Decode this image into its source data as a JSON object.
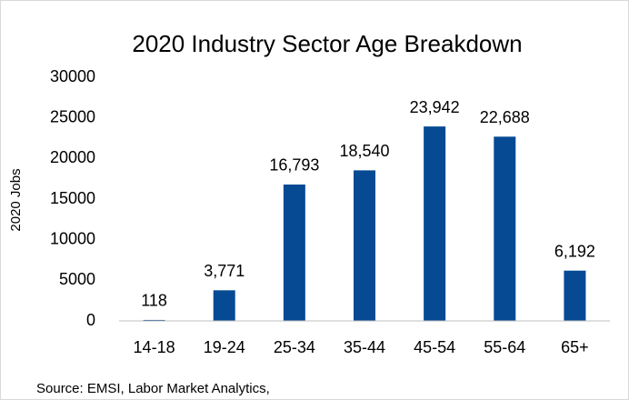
{
  "chart_data": {
    "type": "bar",
    "title": "2020 Industry Sector Age Breakdown",
    "y_label": "2020 Jobs",
    "categories": [
      "14-18",
      "19-24",
      "25-34",
      "35-44",
      "45-54",
      "55-64",
      "65+"
    ],
    "values": [
      118,
      3771,
      16793,
      18540,
      23942,
      22688,
      6192
    ],
    "value_labels": [
      "118",
      "3,771",
      "16,793",
      "18,540",
      "23,942",
      "22,688",
      "6,192"
    ],
    "color": "#064a93",
    "ylim": [
      0,
      30000
    ],
    "yticks": [
      0,
      5000,
      10000,
      15000,
      20000,
      25000,
      30000
    ],
    "grid": false,
    "source": "Source: EMSI, Labor Market Analytics,"
  }
}
